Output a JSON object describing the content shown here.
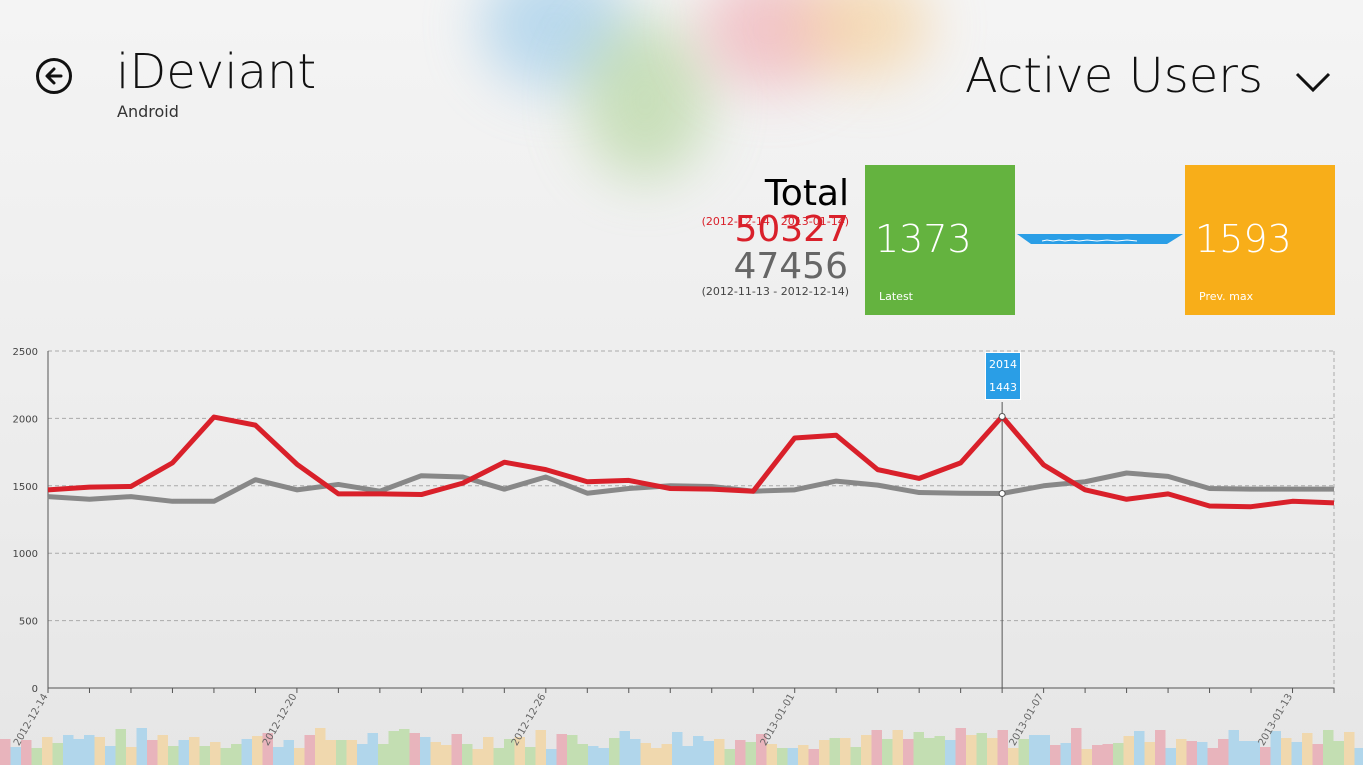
{
  "header": {
    "app_title": "iDeviant",
    "platform": "Android",
    "metric": "Active Users"
  },
  "summary": {
    "total_word": "Total",
    "total_value": "50327",
    "total_range": "(2012-12-14 - 2013-01-14)",
    "prev_total_value": "47456",
    "prev_range": "(2012-11-13 - 2012-12-14)"
  },
  "tiles": {
    "latest_value": "1373",
    "latest_label": "Latest",
    "prev_max_value": "1593",
    "prev_max_label": "Prev. max"
  },
  "tooltip": {
    "current": "2014",
    "previous": "1443",
    "index": 23
  },
  "colors": {
    "current_series": "#d9202a",
    "previous_series": "#888888",
    "latest_tile": "#64b33f",
    "prev_max_tile": "#f8ae19",
    "tooltip": "#2a9ee6"
  },
  "chart_data": {
    "type": "line",
    "ylim": [
      0,
      2500
    ],
    "y_ticks": [
      0,
      500,
      1000,
      1500,
      2000,
      2500
    ],
    "x_tick_labels": [
      {
        "i": 0,
        "label": "2012-12-14"
      },
      {
        "i": 6,
        "label": "2012-12-20"
      },
      {
        "i": 12,
        "label": "2012-12-26"
      },
      {
        "i": 18,
        "label": "2013-01-01"
      },
      {
        "i": 24,
        "label": "2013-01-07"
      },
      {
        "i": 30,
        "label": "2013-01-13"
      }
    ],
    "grid": true,
    "series": [
      {
        "values": [
          1470,
          1490,
          1495,
          1670,
          2010,
          1950,
          1660,
          1440,
          1440,
          1435,
          1520,
          1675,
          1620,
          1530,
          1540,
          1480,
          1475,
          1460,
          1855,
          1875,
          1620,
          1555,
          1670,
          2014,
          1655,
          1470,
          1400,
          1440,
          1350,
          1345,
          1385,
          1373
        ]
      },
      {
        "values": [
          1420,
          1400,
          1420,
          1385,
          1385,
          1545,
          1470,
          1510,
          1460,
          1575,
          1565,
          1475,
          1565,
          1445,
          1480,
          1500,
          1495,
          1460,
          1470,
          1535,
          1505,
          1450,
          1445,
          1443,
          1500,
          1530,
          1595,
          1570,
          1480,
          1475,
          1475,
          1475
        ]
      }
    ]
  }
}
